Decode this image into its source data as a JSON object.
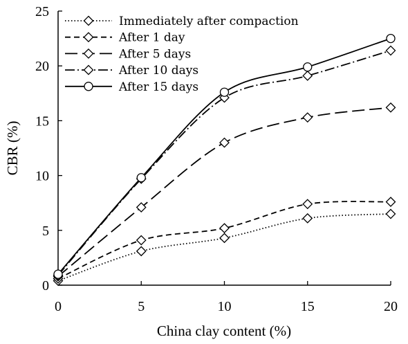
{
  "chart_data": {
    "type": "line",
    "xlabel": "China clay content (%)",
    "ylabel": "CBR (%)",
    "xlim": [
      0,
      20
    ],
    "ylim": [
      0,
      25
    ],
    "xticks": [
      0,
      5,
      10,
      15,
      20
    ],
    "yticks": [
      0,
      5,
      10,
      15,
      20,
      25
    ],
    "x": [
      0,
      5,
      10,
      15,
      20
    ],
    "grid": false,
    "legend_position": "top-left",
    "series": [
      {
        "name": "Immediately after compaction",
        "values": [
          0.4,
          3.1,
          4.3,
          6.1,
          6.5
        ],
        "dash": "1.5,3",
        "marker": "diamond"
      },
      {
        "name": "After 1 day",
        "values": [
          0.6,
          4.1,
          5.2,
          7.4,
          7.6
        ],
        "dash": "8,5",
        "marker": "diamond"
      },
      {
        "name": "After 5 days",
        "values": [
          0.8,
          7.1,
          13.0,
          15.3,
          16.2
        ],
        "dash": "18,7",
        "marker": "diamond"
      },
      {
        "name": "After 10 days",
        "values": [
          0.9,
          9.7,
          17.1,
          19.1,
          21.4
        ],
        "dash": "14,4,2,4",
        "marker": "diamond"
      },
      {
        "name": "After 15 days",
        "values": [
          1.0,
          9.8,
          17.6,
          19.9,
          22.5
        ],
        "dash": "",
        "marker": "circle"
      }
    ]
  }
}
